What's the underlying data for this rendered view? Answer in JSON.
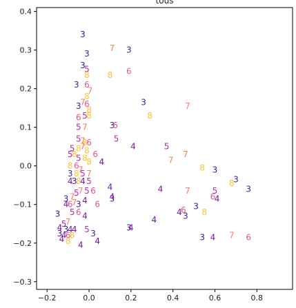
{
  "chart_data": {
    "type": "scatter",
    "title": "tous",
    "xlabel": "",
    "ylabel": "",
    "xlim": [
      -0.25,
      0.97
    ],
    "ylim": [
      -0.32,
      0.41
    ],
    "xticks": [
      -0.2,
      0.0,
      0.2,
      0.4,
      0.6,
      0.8
    ],
    "xtick_labels": [
      "−0.2",
      "0.0",
      "0.2",
      "0.4",
      "0.6",
      "0.8"
    ],
    "yticks": [
      -0.3,
      -0.2,
      -0.1,
      0.0,
      0.1,
      0.2,
      0.3,
      0.4
    ],
    "ytick_labels": [
      "−0.3",
      "−0.2",
      "−0.1",
      "0.0",
      "0.1",
      "0.2",
      "0.3",
      "0.4"
    ],
    "grid": false,
    "label_colors": {
      "3": "#3a1d95",
      "4": "#7a14a6",
      "5": "#b42ca0",
      "6": "#e2568a",
      "7": "#f57f60",
      "8": "#fcc237"
    },
    "points": [
      {
        "x": -0.03,
        "y": 0.34,
        "label": "3"
      },
      {
        "x": -0.01,
        "y": 0.29,
        "label": "3"
      },
      {
        "x": -0.03,
        "y": 0.26,
        "label": "3"
      },
      {
        "x": -0.01,
        "y": 0.25,
        "label": "5"
      },
      {
        "x": -0.01,
        "y": 0.235,
        "label": "8"
      },
      {
        "x": 0.11,
        "y": 0.305,
        "label": "7"
      },
      {
        "x": 0.19,
        "y": 0.3,
        "label": "3"
      },
      {
        "x": 0.19,
        "y": 0.245,
        "label": "6"
      },
      {
        "x": 0.1,
        "y": 0.235,
        "label": "8"
      },
      {
        "x": -0.06,
        "y": 0.21,
        "label": "3"
      },
      {
        "x": -0.01,
        "y": 0.21,
        "label": "6"
      },
      {
        "x": 0.005,
        "y": 0.195,
        "label": "7"
      },
      {
        "x": -0.01,
        "y": 0.18,
        "label": "8"
      },
      {
        "x": 0.26,
        "y": 0.165,
        "label": "3"
      },
      {
        "x": 0.47,
        "y": 0.155,
        "label": "7"
      },
      {
        "x": -0.05,
        "y": 0.155,
        "label": "3"
      },
      {
        "x": -0.03,
        "y": 0.165,
        "label": "7"
      },
      {
        "x": -0.01,
        "y": 0.16,
        "label": "6"
      },
      {
        "x": 0.0,
        "y": 0.145,
        "label": "8"
      },
      {
        "x": 0.29,
        "y": 0.13,
        "label": "8"
      },
      {
        "x": -0.05,
        "y": 0.125,
        "label": "6"
      },
      {
        "x": -0.02,
        "y": 0.13,
        "label": "5"
      },
      {
        "x": 0.0,
        "y": 0.13,
        "label": "8"
      },
      {
        "x": 0.11,
        "y": 0.105,
        "label": "3"
      },
      {
        "x": 0.125,
        "y": 0.105,
        "label": "6"
      },
      {
        "x": -0.05,
        "y": 0.1,
        "label": "5"
      },
      {
        "x": -0.02,
        "y": 0.1,
        "label": "7"
      },
      {
        "x": 0.13,
        "y": 0.07,
        "label": "5"
      },
      {
        "x": 0.21,
        "y": 0.05,
        "label": "4"
      },
      {
        "x": 0.37,
        "y": 0.05,
        "label": "5"
      },
      {
        "x": -0.05,
        "y": 0.07,
        "label": "5"
      },
      {
        "x": -0.03,
        "y": 0.065,
        "label": "7"
      },
      {
        "x": -0.02,
        "y": 0.06,
        "label": "8"
      },
      {
        "x": 0.0,
        "y": 0.06,
        "label": "6"
      },
      {
        "x": 0.46,
        "y": 0.03,
        "label": "7"
      },
      {
        "x": 0.39,
        "y": 0.015,
        "label": "7"
      },
      {
        "x": -0.08,
        "y": 0.045,
        "label": "5"
      },
      {
        "x": -0.05,
        "y": 0.045,
        "label": "8"
      },
      {
        "x": -0.03,
        "y": 0.05,
        "label": "7"
      },
      {
        "x": -0.01,
        "y": 0.04,
        "label": "8"
      },
      {
        "x": 0.03,
        "y": 0.03,
        "label": "6"
      },
      {
        "x": -0.09,
        "y": 0.03,
        "label": "5"
      },
      {
        "x": -0.07,
        "y": 0.03,
        "label": "8"
      },
      {
        "x": -0.05,
        "y": 0.02,
        "label": "5"
      },
      {
        "x": -0.02,
        "y": 0.02,
        "label": "8"
      },
      {
        "x": 0.0,
        "y": 0.01,
        "label": "8"
      },
      {
        "x": 0.06,
        "y": 0.01,
        "label": "4"
      },
      {
        "x": -0.09,
        "y": 0.0,
        "label": "8"
      },
      {
        "x": -0.06,
        "y": 0.0,
        "label": "6"
      },
      {
        "x": -0.04,
        "y": -0.01,
        "label": "7"
      },
      {
        "x": 0.54,
        "y": -0.005,
        "label": "8"
      },
      {
        "x": 0.6,
        "y": -0.01,
        "label": "3"
      },
      {
        "x": -0.09,
        "y": -0.02,
        "label": "3"
      },
      {
        "x": -0.06,
        "y": -0.02,
        "label": "8"
      },
      {
        "x": -0.03,
        "y": -0.02,
        "label": "5"
      },
      {
        "x": 0.0,
        "y": -0.02,
        "label": "7"
      },
      {
        "x": 0.7,
        "y": -0.035,
        "label": "3"
      },
      {
        "x": 0.68,
        "y": -0.045,
        "label": "8"
      },
      {
        "x": 0.76,
        "y": -0.06,
        "label": "3"
      },
      {
        "x": -0.09,
        "y": -0.04,
        "label": "4"
      },
      {
        "x": -0.07,
        "y": -0.04,
        "label": "3"
      },
      {
        "x": -0.05,
        "y": -0.04,
        "label": "8"
      },
      {
        "x": -0.03,
        "y": -0.04,
        "label": "4"
      },
      {
        "x": 0.0,
        "y": -0.04,
        "label": "5"
      },
      {
        "x": 0.1,
        "y": -0.055,
        "label": "4"
      },
      {
        "x": 0.34,
        "y": -0.06,
        "label": "4"
      },
      {
        "x": 0.47,
        "y": -0.065,
        "label": "7"
      },
      {
        "x": 0.6,
        "y": -0.065,
        "label": "5"
      },
      {
        "x": -0.11,
        "y": -0.085,
        "label": "3"
      },
      {
        "x": -0.08,
        "y": -0.08,
        "label": "7"
      },
      {
        "x": -0.06,
        "y": -0.07,
        "label": "5"
      },
      {
        "x": -0.04,
        "y": -0.065,
        "label": "7"
      },
      {
        "x": -0.01,
        "y": -0.065,
        "label": "5"
      },
      {
        "x": 0.02,
        "y": -0.065,
        "label": "6"
      },
      {
        "x": 0.11,
        "y": -0.085,
        "label": "3"
      },
      {
        "x": 0.11,
        "y": -0.08,
        "label": "4"
      },
      {
        "x": 0.59,
        "y": -0.08,
        "label": "6"
      },
      {
        "x": 0.61,
        "y": -0.085,
        "label": "4"
      },
      {
        "x": -0.11,
        "y": -0.1,
        "label": "4"
      },
      {
        "x": -0.09,
        "y": -0.1,
        "label": "6"
      },
      {
        "x": -0.07,
        "y": -0.095,
        "label": "7"
      },
      {
        "x": -0.05,
        "y": -0.1,
        "label": "3"
      },
      {
        "x": -0.02,
        "y": -0.09,
        "label": "4"
      },
      {
        "x": 0.04,
        "y": -0.1,
        "label": "6"
      },
      {
        "x": 0.51,
        "y": -0.105,
        "label": "3"
      },
      {
        "x": 0.45,
        "y": -0.115,
        "label": "6"
      },
      {
        "x": 0.43,
        "y": -0.12,
        "label": "4"
      },
      {
        "x": 0.55,
        "y": -0.12,
        "label": "8"
      },
      {
        "x": 0.46,
        "y": -0.13,
        "label": "3"
      },
      {
        "x": -0.15,
        "y": -0.125,
        "label": "3"
      },
      {
        "x": -0.08,
        "y": -0.12,
        "label": "5"
      },
      {
        "x": -0.05,
        "y": -0.12,
        "label": "6"
      },
      {
        "x": -0.02,
        "y": -0.13,
        "label": "4"
      },
      {
        "x": 0.31,
        "y": -0.14,
        "label": "4"
      },
      {
        "x": -0.12,
        "y": -0.15,
        "label": "5"
      },
      {
        "x": -0.1,
        "y": -0.145,
        "label": "7"
      },
      {
        "x": -0.14,
        "y": -0.16,
        "label": "4"
      },
      {
        "x": -0.11,
        "y": -0.165,
        "label": "3"
      },
      {
        "x": -0.09,
        "y": -0.165,
        "label": "4"
      },
      {
        "x": -0.07,
        "y": -0.165,
        "label": "4"
      },
      {
        "x": -0.01,
        "y": -0.165,
        "label": "5"
      },
      {
        "x": 0.19,
        "y": -0.16,
        "label": "3"
      },
      {
        "x": 0.2,
        "y": -0.16,
        "label": "4"
      },
      {
        "x": -0.14,
        "y": -0.175,
        "label": "3"
      },
      {
        "x": -0.12,
        "y": -0.18,
        "label": "4"
      },
      {
        "x": -0.1,
        "y": -0.18,
        "label": "6"
      },
      {
        "x": -0.08,
        "y": -0.18,
        "label": "8"
      },
      {
        "x": 0.02,
        "y": -0.175,
        "label": "3"
      },
      {
        "x": 0.54,
        "y": -0.185,
        "label": "3"
      },
      {
        "x": 0.59,
        "y": -0.185,
        "label": "4"
      },
      {
        "x": 0.68,
        "y": -0.18,
        "label": "7"
      },
      {
        "x": 0.76,
        "y": -0.185,
        "label": "6"
      },
      {
        "x": -0.13,
        "y": -0.19,
        "label": "4"
      },
      {
        "x": -0.1,
        "y": -0.195,
        "label": "8"
      },
      {
        "x": 0.04,
        "y": -0.195,
        "label": "4"
      },
      {
        "x": -0.04,
        "y": -0.205,
        "label": "4"
      }
    ]
  }
}
